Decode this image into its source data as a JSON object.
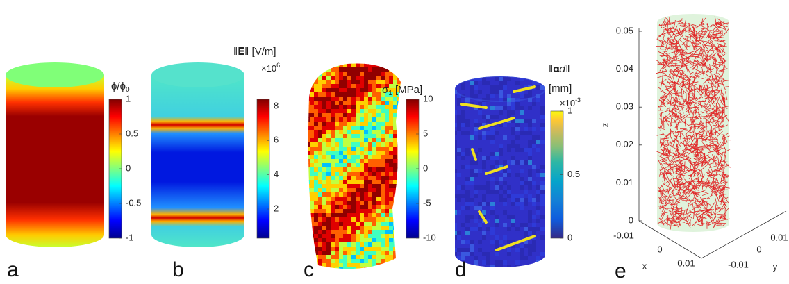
{
  "panels": [
    {
      "label": "a",
      "title": "ϕ/ϕ",
      "title_sub": "0",
      "colorbar": {
        "clim": [
          -1,
          1
        ],
        "ticks": [
          -1,
          -0.5,
          0,
          0.5,
          1
        ]
      }
    },
    {
      "label": "b",
      "title": "‖𝐄‖ [V/m]",
      "multiplier": "×10",
      "multiplier_exp": "6",
      "colorbar": {
        "clim": [
          0.3,
          8.4
        ],
        "ticks": [
          2,
          4,
          6,
          8
        ]
      }
    },
    {
      "label": "c",
      "title": "σ",
      "title_sub": "1",
      "title_unit": " [MPa]",
      "colorbar": {
        "clim": [
          -10,
          10
        ],
        "ticks": [
          -10,
          -5,
          0,
          5,
          10
        ]
      }
    },
    {
      "label": "d",
      "title": "‖𝛂𝑑‖",
      "title_unit": "[mm]",
      "multiplier": "×10",
      "multiplier_exp": "-3",
      "colorbar": {
        "clim": [
          0,
          1
        ],
        "ticks": [
          0,
          0.5,
          1
        ]
      }
    },
    {
      "label": "e",
      "axes": {
        "zlabel": "z",
        "xlabel": "x",
        "ylabel": "y",
        "zlim": [
          0,
          0.05
        ],
        "zticks": [
          0,
          0.01,
          0.02,
          0.03,
          0.04,
          0.05
        ],
        "xticks": [
          -0.01,
          0,
          0.01
        ],
        "yticks": [
          -0.01,
          0,
          0.01
        ]
      }
    }
  ]
}
